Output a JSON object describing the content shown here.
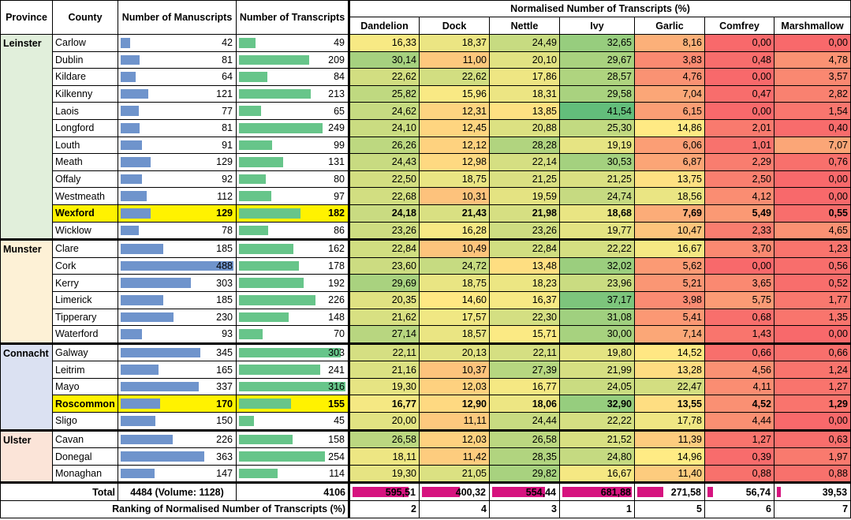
{
  "colors": {
    "leinster": "#e1efdb",
    "munster": "#fdf1d6",
    "connacht": "#dbe1f2",
    "ulster": "#fbe4d8",
    "highlight": "#fff200",
    "bar_manuscripts": "#6f94cc",
    "bar_transcripts": "#67c58a",
    "bar_totals": "#d6137f"
  },
  "header": {
    "province": "Province",
    "county": "County",
    "manuscripts": "Number of Manuscripts",
    "transcripts": "Number of Transcripts",
    "normalised": "Normalised Number of Transcripts (%)",
    "plants": [
      "Dandelion",
      "Dock",
      "Nettle",
      "Ivy",
      "Garlic",
      "Comfrey",
      "Marshmallow"
    ]
  },
  "provinces": [
    {
      "name": "Leinster",
      "bg": "#e1efdb",
      "rows": [
        {
          "county": "Carlow",
          "man": 42,
          "tra": 49,
          "v": [
            "16,33",
            "18,37",
            "24,49",
            "32,65",
            "8,16",
            "0,00",
            "0,00"
          ]
        },
        {
          "county": "Dublin",
          "man": 81,
          "tra": 209,
          "v": [
            "30,14",
            "11,00",
            "20,10",
            "29,67",
            "3,83",
            "0,48",
            "4,78"
          ]
        },
        {
          "county": "Kildare",
          "man": 64,
          "tra": 84,
          "v": [
            "22,62",
            "22,62",
            "17,86",
            "28,57",
            "4,76",
            "0,00",
            "3,57"
          ]
        },
        {
          "county": "Kilkenny",
          "man": 121,
          "tra": 213,
          "v": [
            "25,82",
            "15,96",
            "18,31",
            "29,58",
            "7,04",
            "0,47",
            "2,82"
          ]
        },
        {
          "county": "Laois",
          "man": 77,
          "tra": 65,
          "v": [
            "24,62",
            "12,31",
            "13,85",
            "41,54",
            "6,15",
            "0,00",
            "1,54"
          ]
        },
        {
          "county": "Longford",
          "man": 81,
          "tra": 249,
          "v": [
            "24,10",
            "12,45",
            "20,88",
            "25,30",
            "14,86",
            "2,01",
            "0,40"
          ]
        },
        {
          "county": "Louth",
          "man": 91,
          "tra": 99,
          "v": [
            "26,26",
            "12,12",
            "28,28",
            "19,19",
            "6,06",
            "1,01",
            "7,07"
          ]
        },
        {
          "county": "Meath",
          "man": 129,
          "tra": 131,
          "v": [
            "24,43",
            "12,98",
            "22,14",
            "30,53",
            "6,87",
            "2,29",
            "0,76"
          ]
        },
        {
          "county": "Offaly",
          "man": 92,
          "tra": 80,
          "v": [
            "22,50",
            "18,75",
            "21,25",
            "21,25",
            "13,75",
            "2,50",
            "0,00"
          ]
        },
        {
          "county": "Westmeath",
          "man": 112,
          "tra": 97,
          "v": [
            "22,68",
            "10,31",
            "19,59",
            "24,74",
            "18,56",
            "4,12",
            "0,00"
          ]
        },
        {
          "county": "Wexford",
          "man": 129,
          "tra": 182,
          "v": [
            "24,18",
            "21,43",
            "21,98",
            "18,68",
            "7,69",
            "5,49",
            "0,55"
          ],
          "highlight": true
        },
        {
          "county": "Wicklow",
          "man": 78,
          "tra": 86,
          "v": [
            "23,26",
            "16,28",
            "23,26",
            "19,77",
            "10,47",
            "2,33",
            "4,65"
          ]
        }
      ]
    },
    {
      "name": "Munster",
      "bg": "#fdf1d6",
      "rows": [
        {
          "county": "Clare",
          "man": 185,
          "tra": 162,
          "v": [
            "22,84",
            "10,49",
            "22,84",
            "22,22",
            "16,67",
            "3,70",
            "1,23"
          ]
        },
        {
          "county": "Cork",
          "man": 488,
          "tra": 178,
          "v": [
            "23,60",
            "24,72",
            "13,48",
            "32,02",
            "5,62",
            "0,00",
            "0,56"
          ]
        },
        {
          "county": "Kerry",
          "man": 303,
          "tra": 192,
          "v": [
            "29,69",
            "18,75",
            "18,23",
            "23,96",
            "5,21",
            "3,65",
            "0,52"
          ]
        },
        {
          "county": "Limerick",
          "man": 185,
          "tra": 226,
          "v": [
            "20,35",
            "14,60",
            "16,37",
            "37,17",
            "3,98",
            "5,75",
            "1,77"
          ]
        },
        {
          "county": "Tipperary",
          "man": 230,
          "tra": 148,
          "v": [
            "21,62",
            "17,57",
            "22,30",
            "31,08",
            "5,41",
            "0,68",
            "1,35"
          ]
        },
        {
          "county": "Waterford",
          "man": 93,
          "tra": 70,
          "v": [
            "27,14",
            "18,57",
            "15,71",
            "30,00",
            "7,14",
            "1,43",
            "0,00"
          ]
        }
      ]
    },
    {
      "name": "Connacht",
      "bg": "#dbe1f2",
      "rows": [
        {
          "county": "Galway",
          "man": 345,
          "tra": 303,
          "v": [
            "22,11",
            "20,13",
            "22,11",
            "19,80",
            "14,52",
            "0,66",
            "0,66"
          ]
        },
        {
          "county": "Leitrim",
          "man": 165,
          "tra": 241,
          "v": [
            "21,16",
            "10,37",
            "27,39",
            "21,99",
            "13,28",
            "4,56",
            "1,24"
          ]
        },
        {
          "county": "Mayo",
          "man": 337,
          "tra": 316,
          "v": [
            "19,30",
            "12,03",
            "16,77",
            "24,05",
            "22,47",
            "4,11",
            "1,27"
          ]
        },
        {
          "county": "Roscommon",
          "man": 170,
          "tra": 155,
          "v": [
            "16,77",
            "12,90",
            "18,06",
            "32,90",
            "13,55",
            "4,52",
            "1,29"
          ],
          "highlight": true
        },
        {
          "county": "Sligo",
          "man": 150,
          "tra": 45,
          "v": [
            "20,00",
            "11,11",
            "24,44",
            "22,22",
            "17,78",
            "4,44",
            "0,00"
          ]
        }
      ]
    },
    {
      "name": "Ulster",
      "bg": "#fbe4d8",
      "rows": [
        {
          "county": "Cavan",
          "man": 226,
          "tra": 158,
          "v": [
            "26,58",
            "12,03",
            "26,58",
            "21,52",
            "11,39",
            "1,27",
            "0,63"
          ]
        },
        {
          "county": "Donegal",
          "man": 363,
          "tra": 254,
          "v": [
            "18,11",
            "11,42",
            "28,35",
            "24,80",
            "14,96",
            "0,39",
            "1,97"
          ]
        },
        {
          "county": "Monaghan",
          "man": 147,
          "tra": 114,
          "v": [
            "19,30",
            "21,05",
            "29,82",
            "16,67",
            "11,40",
            "0,88",
            "0,88"
          ]
        }
      ]
    }
  ],
  "totals": {
    "label": "Total",
    "manuscripts": "4484 (Volume: 1128)",
    "transcripts": "4106",
    "plant_totals": [
      "595,51",
      "400,32",
      "554,44",
      "681,88",
      "271,58",
      "56,74",
      "39,53"
    ]
  },
  "ranking": {
    "label": "Ranking of Normalised Number of Transcripts (%)",
    "values": [
      "2",
      "4",
      "3",
      "1",
      "5",
      "6",
      "7"
    ]
  }
}
